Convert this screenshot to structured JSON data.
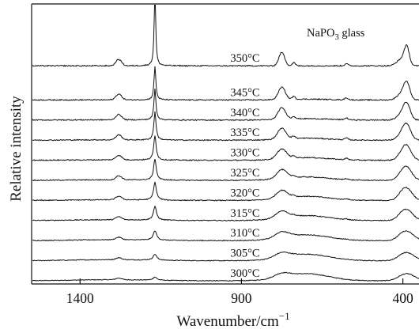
{
  "chart_data": {
    "type": "line",
    "title": "",
    "xlabel": "Wavenumber/cm",
    "xlabel_superscript": "−1",
    "ylabel": "Relative intensity",
    "annotation": {
      "prefix": "NaPO",
      "subscript": "3",
      "suffix": " glass"
    },
    "xlim": [
      1550,
      350
    ],
    "x_reversed": true,
    "xticks": [
      {
        "value": 1400,
        "label": "1400"
      },
      {
        "value": 900,
        "label": "900"
      },
      {
        "value": 400,
        "label": "400"
      }
    ],
    "y_ticks_shown": false,
    "grid": false,
    "legend": "none",
    "line_color": "#111111",
    "peaks_cm-1": {
      "sharp_main": 1168,
      "minor_high": 1280,
      "broad_mid": 775,
      "shoulder": 738,
      "small": 575,
      "low": 388,
      "low_shoulder": 405
    },
    "series": [
      {
        "name": "300°C",
        "temperature_C": 300,
        "baseline": 0.0,
        "cryst_fraction": 0.0
      },
      {
        "name": "305°C",
        "temperature_C": 305,
        "baseline": 1.0,
        "cryst_fraction": 0.08
      },
      {
        "name": "310°C",
        "temperature_C": 310,
        "baseline": 2.0,
        "cryst_fraction": 0.18
      },
      {
        "name": "315°C",
        "temperature_C": 315,
        "baseline": 3.0,
        "cryst_fraction": 0.3
      },
      {
        "name": "320°C",
        "temperature_C": 320,
        "baseline": 4.0,
        "cryst_fraction": 0.42
      },
      {
        "name": "325°C",
        "temperature_C": 325,
        "baseline": 5.0,
        "cryst_fraction": 0.52
      },
      {
        "name": "330°C",
        "temperature_C": 330,
        "baseline": 6.0,
        "cryst_fraction": 0.62
      },
      {
        "name": "335°C",
        "temperature_C": 335,
        "baseline": 7.0,
        "cryst_fraction": 0.72
      },
      {
        "name": "340°C",
        "temperature_C": 340,
        "baseline": 8.0,
        "cryst_fraction": 0.8
      },
      {
        "name": "345°C",
        "temperature_C": 345,
        "baseline": 9.0,
        "cryst_fraction": 0.88
      },
      {
        "name": "350°C",
        "temperature_C": 350,
        "baseline": 10.7,
        "cryst_fraction": 1.0
      }
    ]
  }
}
